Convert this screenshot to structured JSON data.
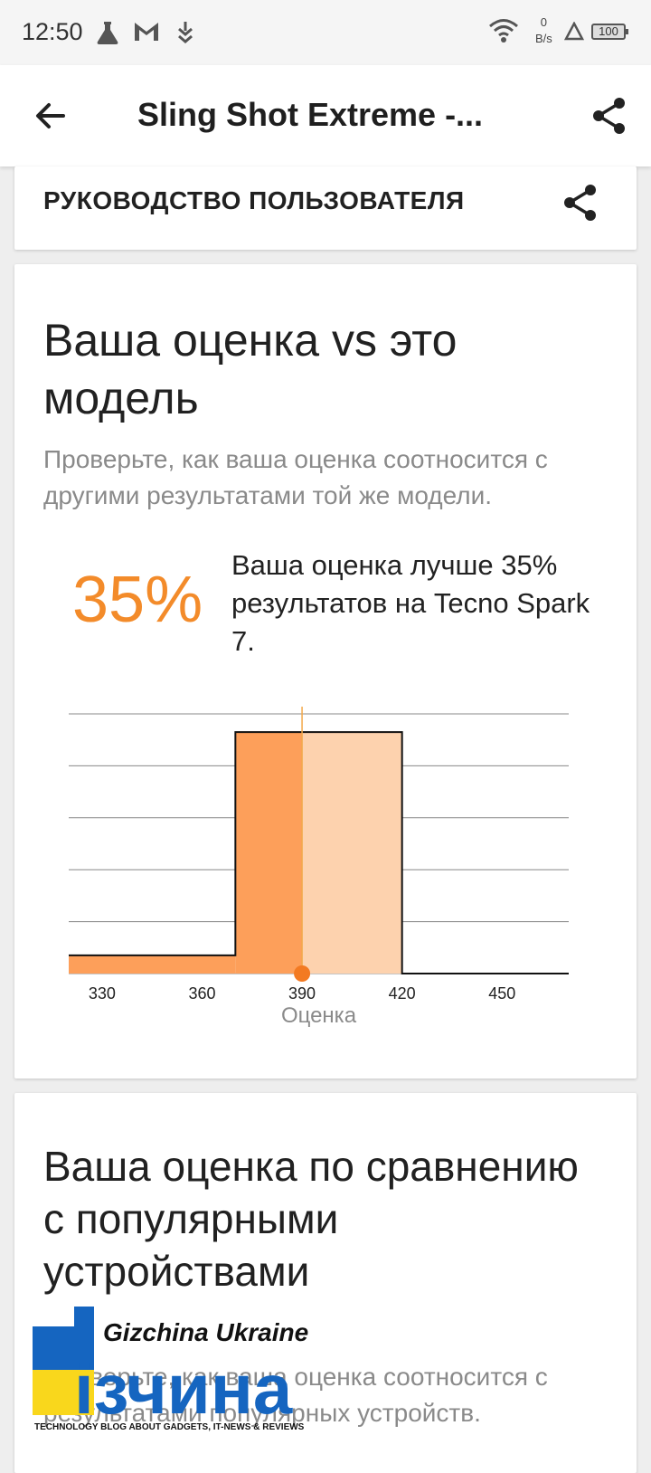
{
  "status_bar": {
    "time": "12:50",
    "speed_value": "0",
    "speed_unit": "B/s",
    "battery": "100",
    "icons": [
      "flask-icon",
      "gmail-icon",
      "download-icon",
      "wifi-icon",
      "alert-icon",
      "battery-icon"
    ]
  },
  "app_bar": {
    "title": "Sling Shot Extreme -...",
    "back_icon": "arrow-back-icon",
    "share_icon": "share-icon"
  },
  "guide": {
    "label": "РУКОВОДСТВО ПОЛЬЗОВАТЕЛЯ"
  },
  "model_compare": {
    "title": "Ваша оценка vs это модель",
    "subtitle": "Проверьте, как ваша оценка соотносится с другими результатами той же модели.",
    "percent": "35%",
    "description": "Ваша оценка лучше 35% результатов на Tecno Spark 7."
  },
  "chart_data": {
    "type": "histogram",
    "xlabel": "Оценка",
    "xlim": [
      320,
      470
    ],
    "x_ticks": [
      "330",
      "360",
      "390",
      "420",
      "450"
    ],
    "bins": [
      {
        "start": 320,
        "end": 370,
        "value": 0.07
      },
      {
        "start": 370,
        "end": 420,
        "value": 0.93
      },
      {
        "start": 420,
        "end": 470,
        "value": 0
      }
    ],
    "your_score": 390,
    "colors": {
      "below": "#fd9f5a",
      "above": "#fdd2ae",
      "marker": "#f37a22",
      "grid": "#888888"
    }
  },
  "popular_compare": {
    "title": "Ваша оценка по сравнению с популярными устройствами",
    "subtitle": "Проверьте, как ваша оценка соотносится с результатами популярных устройств."
  },
  "watermark": {
    "brand": "Gizchina Ukraine",
    "logo": "ізчина",
    "tagline": "TECHNOLOGY BLOG ABOUT GADGETS, IT-NEWS & REVIEWS"
  }
}
